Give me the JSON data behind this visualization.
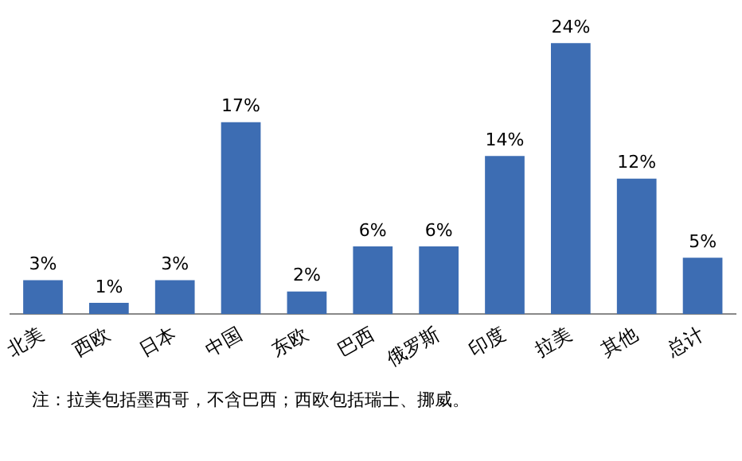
{
  "chart_data": {
    "type": "bar",
    "categories": [
      "北美",
      "西欧",
      "日本",
      "中国",
      "东欧",
      "巴西",
      "俄罗斯",
      "印度",
      "拉美",
      "其他",
      "总计"
    ],
    "values": [
      3,
      1,
      3,
      17,
      2,
      6,
      6,
      14,
      24,
      12,
      5
    ],
    "value_labels": [
      "3%",
      "1%",
      "3%",
      "17%",
      "2%",
      "6%",
      "6%",
      "14%",
      "24%",
      "12%",
      "5%"
    ],
    "color": "#3d6db3",
    "annotations": [
      "注：拉美包括墨西哥，不含巴西；西欧包括瑞士、挪威。"
    ]
  }
}
